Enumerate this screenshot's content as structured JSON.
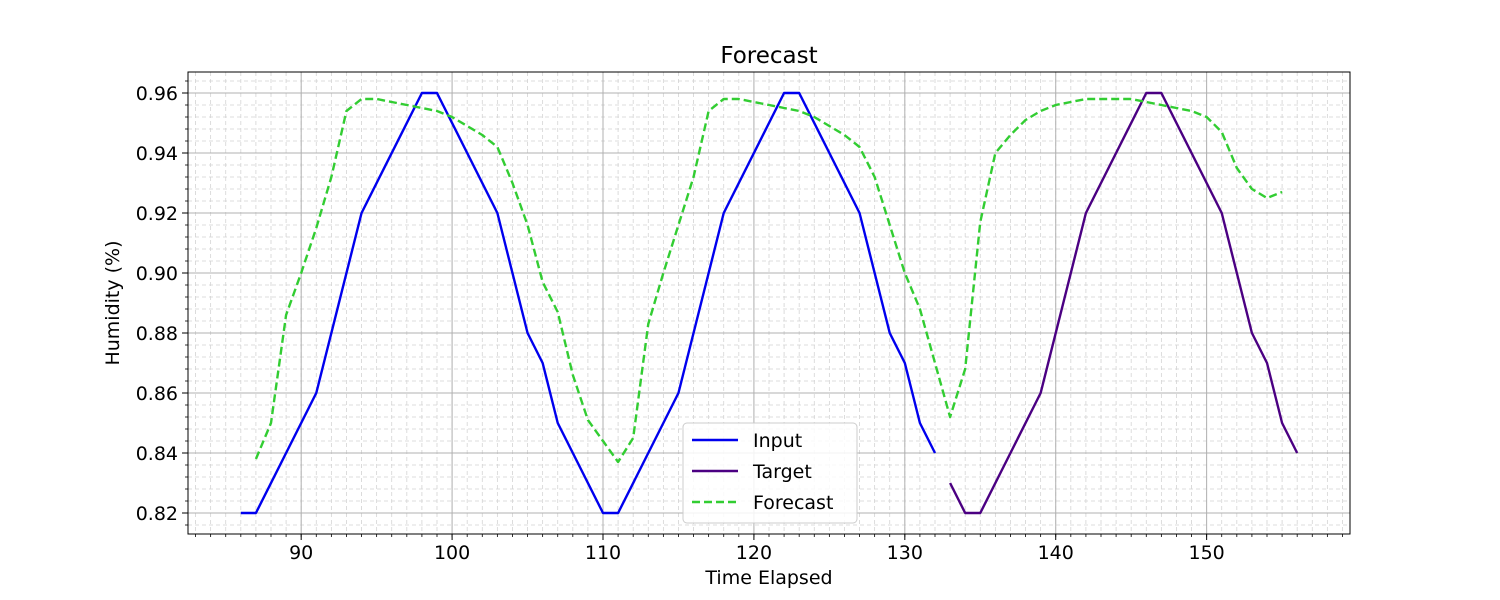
{
  "chart_data": {
    "type": "line",
    "title": "Forecast",
    "xlabel": "Time Elapsed",
    "ylabel": "Humidity (%)",
    "xlim": [
      82.5,
      159.5
    ],
    "ylim": [
      0.813,
      0.967
    ],
    "x_ticks": [
      90,
      100,
      110,
      120,
      130,
      140,
      150
    ],
    "x_tick_labels": [
      "90",
      "100",
      "110",
      "120",
      "130",
      "140",
      "150"
    ],
    "x_minor_step": 1,
    "y_ticks": [
      0.82,
      0.84,
      0.86,
      0.88,
      0.9,
      0.92,
      0.94,
      0.96
    ],
    "y_tick_labels": [
      "0.82",
      "0.84",
      "0.86",
      "0.88",
      "0.90",
      "0.92",
      "0.94",
      "0.96"
    ],
    "y_minor_step": 0.004,
    "grid": true,
    "legend_position": "bottom-center",
    "series": [
      {
        "name": "Input",
        "color": "#0000ee",
        "dash": "solid",
        "x": [
          86,
          87,
          91,
          94,
          98,
          99,
          103,
          105,
          106,
          107,
          110,
          111,
          115,
          118,
          122,
          123,
          127,
          129,
          130,
          131,
          132
        ],
        "y": [
          0.82,
          0.82,
          0.86,
          0.92,
          0.96,
          0.96,
          0.92,
          0.88,
          0.87,
          0.85,
          0.82,
          0.82,
          0.86,
          0.92,
          0.96,
          0.96,
          0.92,
          0.88,
          0.87,
          0.85,
          0.84
        ]
      },
      {
        "name": "Target",
        "color": "#4b0082",
        "dash": "solid",
        "x": [
          133,
          134,
          135,
          139,
          142,
          146,
          147,
          151,
          153,
          154,
          155,
          156
        ],
        "y": [
          0.83,
          0.82,
          0.82,
          0.86,
          0.92,
          0.96,
          0.96,
          0.92,
          0.88,
          0.87,
          0.85,
          0.84
        ]
      },
      {
        "name": "Forecast",
        "color": "#32cd32",
        "dash": "dashed",
        "x": [
          87,
          88,
          89,
          90,
          91,
          92,
          93,
          94,
          95,
          96,
          97,
          98,
          99,
          100,
          101,
          102,
          103,
          104,
          105,
          106,
          107,
          108,
          109,
          110,
          111,
          112,
          113,
          114,
          115,
          116,
          117,
          118,
          119,
          120,
          121,
          122,
          123,
          124,
          125,
          126,
          127,
          128,
          129,
          130,
          131,
          132,
          133,
          134,
          135,
          136,
          137,
          138,
          139,
          140,
          141,
          142,
          143,
          144,
          145,
          146,
          147,
          148,
          149,
          150,
          151,
          152,
          153,
          154,
          155
        ],
        "y": [
          0.838,
          0.85,
          0.886,
          0.9,
          0.915,
          0.932,
          0.954,
          0.958,
          0.958,
          0.957,
          0.956,
          0.955,
          0.954,
          0.952,
          0.949,
          0.946,
          0.942,
          0.93,
          0.916,
          0.897,
          0.887,
          0.866,
          0.851,
          0.844,
          0.837,
          0.845,
          0.883,
          0.9,
          0.916,
          0.932,
          0.954,
          0.958,
          0.958,
          0.957,
          0.956,
          0.955,
          0.954,
          0.952,
          0.949,
          0.946,
          0.942,
          0.932,
          0.916,
          0.9,
          0.888,
          0.87,
          0.852,
          0.868,
          0.917,
          0.94,
          0.946,
          0.951,
          0.954,
          0.956,
          0.957,
          0.958,
          0.958,
          0.958,
          0.958,
          0.957,
          0.956,
          0.955,
          0.954,
          0.952,
          0.947,
          0.935,
          0.928,
          0.925,
          0.927
        ]
      }
    ]
  }
}
